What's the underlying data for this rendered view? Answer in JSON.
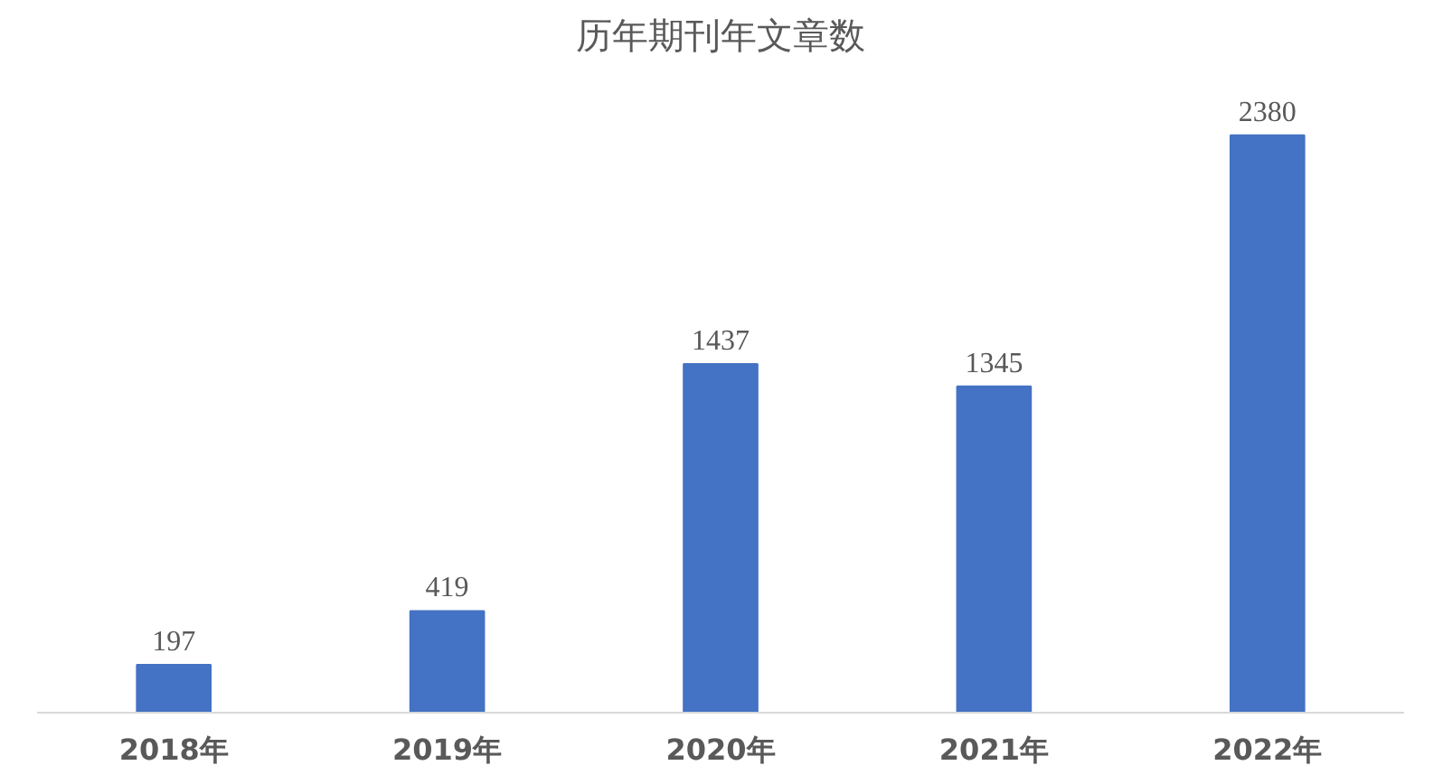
{
  "chart_data": {
    "type": "bar",
    "title": "历年期刊年文章数",
    "categories": [
      "2018年",
      "2019年",
      "2020年",
      "2021年",
      "2022年"
    ],
    "values": [
      197,
      419,
      1437,
      1345,
      2380
    ],
    "color": "#4472c4",
    "data_labels": true
  }
}
